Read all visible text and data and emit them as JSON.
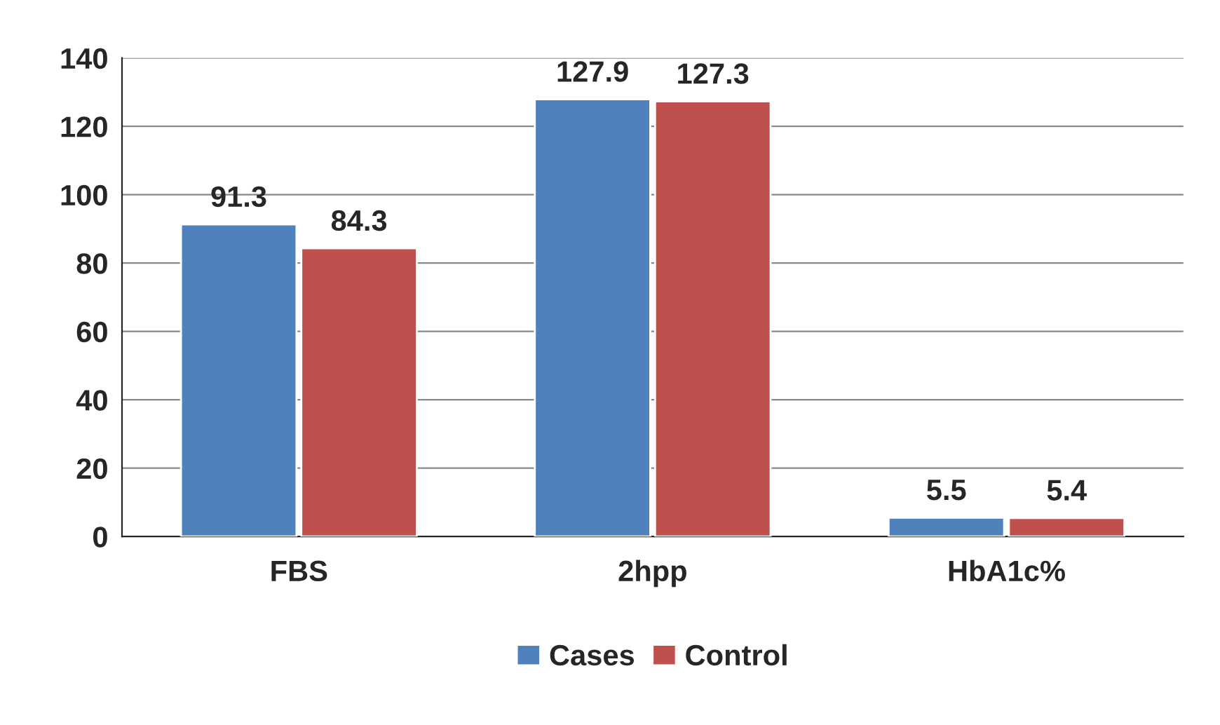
{
  "chart_data": {
    "type": "bar",
    "categories": [
      "FBS",
      "2hpp",
      "HbA1c%"
    ],
    "series": [
      {
        "name": "Cases",
        "color": "#4f81bd",
        "values": [
          91.3,
          127.9,
          5.5
        ]
      },
      {
        "name": "Control",
        "color": "#c0504d",
        "values": [
          84.3,
          127.3,
          5.4
        ]
      }
    ],
    "ylim": [
      0,
      140
    ],
    "yticks": [
      0,
      20,
      40,
      60,
      80,
      100,
      120,
      140
    ],
    "grid": "y",
    "legend": "bottom",
    "data_labels": true
  }
}
